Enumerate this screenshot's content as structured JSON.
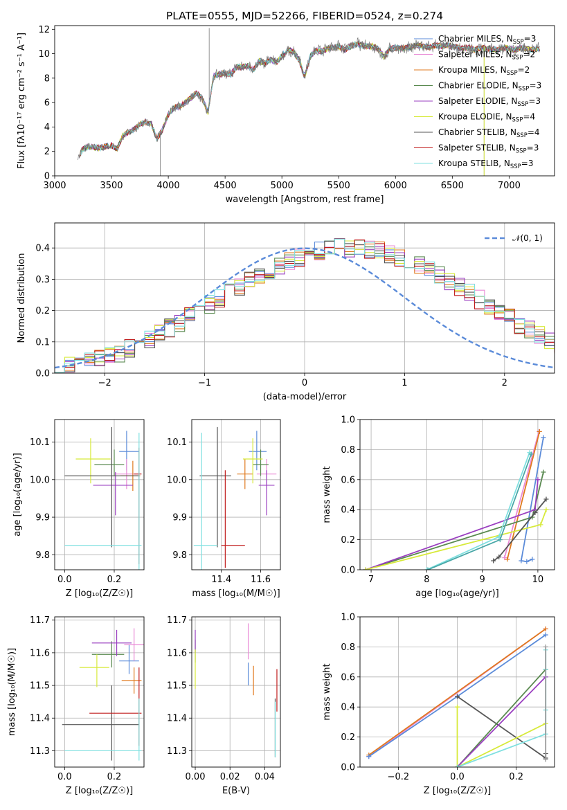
{
  "chart_data": [
    {
      "type": "line",
      "title": "PLATE=0555, MJD=52266, FIBERID=0524, z=0.274",
      "xlabel": "wavelength [Angstrom, rest frame]",
      "ylabel": "Flux [fλ10⁻¹⁷ erg cm⁻² s⁻¹ A⁻¹]",
      "xlim": [
        3000,
        7400
      ],
      "ylim": [
        0,
        12.3
      ],
      "xticks": [
        3000,
        3500,
        4000,
        4500,
        5000,
        5500,
        6000,
        6500,
        7000
      ],
      "yticks": [
        0,
        2,
        4,
        6,
        8,
        10,
        12
      ],
      "grid": false,
      "legend_position": "top-right",
      "x": [
        3200,
        3250,
        3300,
        3350,
        3400,
        3450,
        3500,
        3550,
        3600,
        3650,
        3700,
        3750,
        3800,
        3850,
        3900,
        3950,
        4000,
        4050,
        4100,
        4150,
        4200,
        4250,
        4300,
        4350,
        4400,
        4450,
        4500,
        4550,
        4600,
        4650,
        4700,
        4750,
        4800,
        4850,
        4900,
        4950,
        5000,
        5050,
        5100,
        5150,
        5200,
        5250,
        5300,
        5350,
        5400,
        5450,
        5500,
        5550,
        5600,
        5650,
        5700,
        5750,
        5800,
        5850,
        5900,
        5950,
        6000,
        6050,
        6100,
        6150,
        6200,
        6250,
        6300,
        6350,
        6400,
        6450,
        6500,
        6550,
        6600,
        6650,
        6700,
        6750,
        6800,
        6850,
        6900,
        6950,
        7000,
        7050,
        7100,
        7150,
        7200,
        7250
      ],
      "flux": [
        1.5,
        2.2,
        2.4,
        2.3,
        2.3,
        2.4,
        2.5,
        2.2,
        3.3,
        3.6,
        3.8,
        4.2,
        4.4,
        4.3,
        3.0,
        3.8,
        5.0,
        5.6,
        5.7,
        6.0,
        6.4,
        6.8,
        6.3,
        5.2,
        8.2,
        8.3,
        8.4,
        8.3,
        8.9,
        8.9,
        9.0,
        8.7,
        9.4,
        9.2,
        9.5,
        9.3,
        9.8,
        10.3,
        10.2,
        9.5,
        8.1,
        9.8,
        10.3,
        10.2,
        10.4,
        10.5,
        10.6,
        10.3,
        10.6,
        10.8,
        10.7,
        10.6,
        10.6,
        10.4,
        9.7,
        10.4,
        10.5,
        10.4,
        10.5,
        10.6,
        10.7,
        10.6,
        10.5,
        10.7,
        10.6,
        10.7,
        10.6,
        10.5,
        10.4,
        10.5,
        10.3,
        10.5,
        10.4,
        10.4,
        10.3,
        10.5,
        10.4,
        10.3,
        10.5,
        10.4,
        10.3,
        10.4
      ],
      "spikes": [
        {
          "x": 4360,
          "y": 12.1
        },
        {
          "x": 3930,
          "y": 0
        },
        {
          "x": 6780,
          "y": 0
        }
      ],
      "series": [
        {
          "name": "Chabrier MILES, N_SSP=3",
          "color": "#5b8bd9"
        },
        {
          "name": "Salpeter MILES, N_SSP=2",
          "color": "#e98ad6"
        },
        {
          "name": "Kroupa MILES, N_SSP=2",
          "color": "#e07a1f"
        },
        {
          "name": "Chabrier ELODIE, N_SSP=3",
          "color": "#5a8a50"
        },
        {
          "name": "Salpeter ELODIE, N_SSP=3",
          "color": "#9a3fc0"
        },
        {
          "name": "Kroupa ELODIE, N_SSP=4",
          "color": "#d7ea3a"
        },
        {
          "name": "Chabrier STELIB, N_SSP=4",
          "color": "#555555"
        },
        {
          "name": "Salpeter STELIB, N_SSP=3",
          "color": "#c01c1c"
        },
        {
          "name": "Kroupa STELIB, N_SSP=3",
          "color": "#7fe0e0"
        }
      ]
    },
    {
      "type": "histogram",
      "xlabel": "(data-model)/error",
      "ylabel": "Normed distribution",
      "xlim": [
        -2.5,
        2.5
      ],
      "ylim": [
        0,
        0.48
      ],
      "xticks": [
        -2,
        -1,
        0,
        1,
        2
      ],
      "yticks": [
        0.0,
        0.1,
        0.2,
        0.3,
        0.4
      ],
      "grid": true,
      "legend_position": "top-right",
      "gaussian_label": "𝒩(0, 1)",
      "gaussian_color": "#5b8bd9",
      "bin_width": 0.1,
      "bins_from": -2.5,
      "base_profile": [
        0.02,
        0.025,
        0.03,
        0.035,
        0.045,
        0.055,
        0.065,
        0.08,
        0.095,
        0.11,
        0.125,
        0.145,
        0.16,
        0.18,
        0.2,
        0.22,
        0.24,
        0.26,
        0.275,
        0.295,
        0.31,
        0.325,
        0.34,
        0.355,
        0.37,
        0.38,
        0.39,
        0.395,
        0.4,
        0.4,
        0.4,
        0.395,
        0.39,
        0.38,
        0.37,
        0.36,
        0.345,
        0.33,
        0.31,
        0.29,
        0.275,
        0.255,
        0.235,
        0.215,
        0.195,
        0.175,
        0.155,
        0.14,
        0.12,
        0.105,
        0.09,
        0.075,
        0.062,
        0.05,
        0.04,
        0.032,
        0.025,
        0.02
      ],
      "series_colors": [
        "#5b8bd9",
        "#e98ad6",
        "#e07a1f",
        "#5a8a50",
        "#9a3fc0",
        "#d7ea3a",
        "#555555",
        "#c01c1c",
        "#7fe0e0"
      ]
    },
    {
      "type": "scatter",
      "xlabel": "Z [log₁₀(Z/Z☉)]",
      "ylabel": "age  [log₁₀(age/yr)]",
      "xlim": [
        -0.04,
        0.32
      ],
      "ylim": [
        9.76,
        10.16
      ],
      "xticks": [
        0.0,
        0.2
      ],
      "yticks": [
        9.8,
        9.9,
        10.0,
        10.1
      ],
      "grid": true,
      "points": [
        {
          "x": 0.25,
          "y": 10.075,
          "xerr": [
            0.03,
            0.05
          ],
          "yerr": [
            0.05,
            0.055
          ],
          "color": "#5b8bd9"
        },
        {
          "x": 0.25,
          "y": 10.015,
          "xerr": [
            0.05,
            0.05
          ],
          "yerr": [
            0.04,
            0.04
          ],
          "color": "#e98ad6"
        },
        {
          "x": 0.275,
          "y": 10.01,
          "xerr": [
            0.05,
            0.03
          ],
          "yerr": [
            0.04,
            0.04
          ],
          "color": "#e07a1f"
        },
        {
          "x": 0.2,
          "y": 10.04,
          "xerr": [
            0.08,
            0.04
          ],
          "yerr": [
            0.03,
            0.04
          ],
          "color": "#5a8a50"
        },
        {
          "x": 0.205,
          "y": 9.985,
          "xerr": [
            0.09,
            0.07
          ],
          "yerr": [
            0.08,
            0.035
          ],
          "color": "#9a3fc0"
        },
        {
          "x": 0.105,
          "y": 10.055,
          "xerr": [
            0.06,
            0.08
          ],
          "yerr": [
            0.065,
            0.055
          ],
          "color": "#d7ea3a"
        },
        {
          "x": 0.19,
          "y": 10.01,
          "xerr": [
            0.19,
            0.11
          ],
          "yerr": [
            0.19,
            0.13
          ],
          "color": "#555555"
        },
        {
          "x": 0.3,
          "y": 10.015,
          "xerr": [
            0.02,
            0.01
          ],
          "yerr": [
            0.24,
            0.07
          ],
          "color": "#c01c1c"
        },
        {
          "x": 0.3,
          "y": 9.825,
          "xerr": [
            0.3,
            0.01
          ],
          "yerr": [
            0.07,
            0.3
          ],
          "color": "#7fe0e0"
        }
      ]
    },
    {
      "type": "scatter",
      "xlabel": "mass [log₁₀(M/M☉)]",
      "ylabel": "",
      "xlim": [
        11.25,
        11.7
      ],
      "ylim": [
        9.76,
        10.16
      ],
      "xticks": [
        11.4,
        11.6
      ],
      "yticks": [
        9.8,
        9.9,
        10.0,
        10.1
      ],
      "grid": true,
      "points": [
        {
          "x": 11.58,
          "y": 10.075,
          "xerr": [
            0.04,
            0.05
          ],
          "yerr": [
            0.05,
            0.055
          ],
          "color": "#5b8bd9"
        },
        {
          "x": 11.63,
          "y": 10.015,
          "xerr": [
            0.05,
            0.05
          ],
          "yerr": [
            0.04,
            0.04
          ],
          "color": "#e98ad6"
        },
        {
          "x": 11.52,
          "y": 10.015,
          "xerr": [
            0.04,
            0.04
          ],
          "yerr": [
            0.04,
            0.04
          ],
          "color": "#e07a1f"
        },
        {
          "x": 11.6,
          "y": 10.04,
          "xerr": [
            0.04,
            0.04
          ],
          "yerr": [
            0.03,
            0.04
          ],
          "color": "#5a8a50"
        },
        {
          "x": 11.63,
          "y": 9.985,
          "xerr": [
            0.04,
            0.04
          ],
          "yerr": [
            0.08,
            0.04
          ],
          "color": "#9a3fc0"
        },
        {
          "x": 11.56,
          "y": 10.055,
          "xerr": [
            0.05,
            0.05
          ],
          "yerr": [
            0.065,
            0.055
          ],
          "color": "#d7ea3a"
        },
        {
          "x": 11.38,
          "y": 10.01,
          "xerr": [
            0.09,
            0.07
          ],
          "yerr": [
            0.19,
            0.13
          ],
          "color": "#555555"
        },
        {
          "x": 11.42,
          "y": 9.825,
          "xerr": [
            0.02,
            0.1
          ],
          "yerr": [
            0.06,
            0.2
          ],
          "color": "#c01c1c"
        },
        {
          "x": 11.3,
          "y": 9.825,
          "xerr": [
            0.04,
            0.08
          ],
          "yerr": [
            0.07,
            0.3
          ],
          "color": "#7fe0e0"
        }
      ]
    },
    {
      "type": "line",
      "xlabel": "age  [log₁₀(age/yr)]",
      "ylabel": "mass weight",
      "xlim": [
        6.8,
        10.3
      ],
      "ylim": [
        0,
        1
      ],
      "xticks": [
        7,
        8,
        9,
        10
      ],
      "yticks": [
        0.0,
        0.2,
        0.4,
        0.6,
        0.8,
        1.0
      ],
      "grid": true,
      "series": [
        {
          "color": "#e98ad6",
          "x": [
            9.4,
            10.02
          ],
          "y": [
            0.08,
            0.92
          ]
        },
        {
          "color": "#e07a1f",
          "x": [
            9.45,
            10.03
          ],
          "y": [
            0.07,
            0.92
          ]
        },
        {
          "color": "#5b8bd9",
          "x": [
            9.9,
            9.8,
            9.7,
            10.1
          ],
          "y": [
            0.07,
            0.055,
            0.06,
            0.88
          ]
        },
        {
          "color": "#5a8a50",
          "x": [
            6.9,
            9.9,
            10.1
          ],
          "y": [
            0.0,
            0.35,
            0.65
          ]
        },
        {
          "color": "#9a3fc0",
          "x": [
            6.9,
            9.95,
            10.0
          ],
          "y": [
            0.0,
            0.4,
            0.6
          ]
        },
        {
          "color": "#d7ea3a",
          "x": [
            6.9,
            10.05,
            10.15
          ],
          "y": [
            0.0,
            0.3,
            0.4
          ]
        },
        {
          "color": "#555555",
          "x": [
            9.2,
            9.3,
            9.95,
            10.15
          ],
          "y": [
            0.06,
            0.085,
            0.38,
            0.47
          ]
        },
        {
          "color": "#7fe0e0",
          "x": [
            8.0,
            9.3,
            9.85
          ],
          "y": [
            0.0,
            0.22,
            0.78
          ]
        },
        {
          "color": "#4aa8a8",
          "x": [
            8.02,
            9.32,
            9.88
          ],
          "y": [
            0.0,
            0.2,
            0.77
          ]
        }
      ]
    },
    {
      "type": "scatter",
      "xlabel": "Z [log₁₀(Z/Z☉)]",
      "ylabel": "mass [log₁₀(M/M☉)]",
      "xlim": [
        -0.04,
        0.32
      ],
      "ylim": [
        11.25,
        11.71
      ],
      "xticks": [
        0.0,
        0.2
      ],
      "yticks": [
        11.3,
        11.4,
        11.5,
        11.6,
        11.7
      ],
      "grid": true,
      "points": [
        {
          "x": 0.26,
          "y": 11.575,
          "xerr": [
            0.04,
            0.04
          ],
          "yerr": [
            0.04,
            0.05
          ],
          "color": "#5b8bd9"
        },
        {
          "x": 0.28,
          "y": 11.625,
          "xerr": [
            0.04,
            0.04
          ],
          "yerr": [
            0.05,
            0.05
          ],
          "color": "#e98ad6"
        },
        {
          "x": 0.28,
          "y": 11.515,
          "xerr": [
            0.05,
            0.03
          ],
          "yerr": [
            0.04,
            0.04
          ],
          "color": "#e07a1f"
        },
        {
          "x": 0.19,
          "y": 11.595,
          "xerr": [
            0.08,
            0.05
          ],
          "yerr": [
            0.04,
            0.04
          ],
          "color": "#5a8a50"
        },
        {
          "x": 0.21,
          "y": 11.63,
          "xerr": [
            0.1,
            0.06
          ],
          "yerr": [
            0.04,
            0.04
          ],
          "color": "#9a3fc0"
        },
        {
          "x": 0.13,
          "y": 11.555,
          "xerr": [
            0.07,
            0.05
          ],
          "yerr": [
            0.06,
            0.04
          ],
          "color": "#d7ea3a"
        },
        {
          "x": 0.19,
          "y": 11.38,
          "xerr": [
            0.2,
            0.11
          ],
          "yerr": [
            0.11,
            0.12
          ],
          "color": "#555555"
        },
        {
          "x": 0.3,
          "y": 11.415,
          "xerr": [
            0.2,
            0.01
          ],
          "yerr": [
            0.1,
            0.14
          ],
          "color": "#c01c1c"
        },
        {
          "x": 0.3,
          "y": 11.3,
          "xerr": [
            0.3,
            0.01
          ],
          "yerr": [
            0.03,
            0.16
          ],
          "color": "#7fe0e0"
        }
      ]
    },
    {
      "type": "scatter",
      "xlabel": "E(B-V)",
      "ylabel": "",
      "xlim": [
        -0.002,
        0.049
      ],
      "ylim": [
        11.25,
        11.71
      ],
      "xticks": [
        0.0,
        0.02,
        0.04
      ],
      "yticks": [
        11.3,
        11.4,
        11.5,
        11.6,
        11.7
      ],
      "grid": true,
      "points": [
        {
          "x": 0.0305,
          "y": 11.53,
          "yerr": [
            0.03,
            0.04
          ],
          "color": "#5b8bd9"
        },
        {
          "x": 0.0305,
          "y": 11.63,
          "yerr": [
            0.05,
            0.06
          ],
          "color": "#e98ad6"
        },
        {
          "x": 0.0335,
          "y": 11.52,
          "yerr": [
            0.05,
            0.04
          ],
          "color": "#e07a1f"
        },
        {
          "x": 0.0,
          "y": 11.6,
          "yerr": [
            0.03,
            0.04
          ],
          "color": "#5a8a50"
        },
        {
          "x": 0.0,
          "y": 11.63,
          "yerr": [
            0.03,
            0.04
          ],
          "color": "#9a3fc0"
        },
        {
          "x": 0.0,
          "y": 11.55,
          "yerr": [
            0.06,
            0.06
          ],
          "color": "#d7ea3a"
        },
        {
          "x": 0.046,
          "y": 11.38,
          "yerr": [
            0.1,
            0.08
          ],
          "color": "#555555"
        },
        {
          "x": 0.047,
          "y": 11.47,
          "yerr": [
            0.05,
            0.08
          ],
          "color": "#c01c1c"
        },
        {
          "x": 0.046,
          "y": 11.35,
          "yerr": [
            0.07,
            0.1
          ],
          "color": "#7fe0e0"
        }
      ]
    },
    {
      "type": "line",
      "xlabel": "Z [log₁₀(Z/Z☉)]",
      "ylabel": "mass weight",
      "xlim": [
        -0.33,
        0.33
      ],
      "ylim": [
        0,
        1
      ],
      "xticks": [
        -0.2,
        0.0,
        0.2
      ],
      "yticks": [
        0.0,
        0.2,
        0.4,
        0.6,
        0.8,
        1.0
      ],
      "grid": true,
      "series": [
        {
          "color": "#e98ad6",
          "x": [
            -0.3,
            0.3
          ],
          "y": [
            0.07,
            0.92
          ]
        },
        {
          "color": "#e07a1f",
          "x": [
            -0.3,
            0.3
          ],
          "y": [
            0.08,
            0.92
          ]
        },
        {
          "color": "#5b8bd9",
          "x": [
            -0.3,
            0.0,
            0.3
          ],
          "y": [
            0.07,
            0.47,
            0.88
          ]
        },
        {
          "color": "#555555",
          "x": [
            0.0,
            0.3,
            0.3
          ],
          "y": [
            0.47,
            0.06,
            0.09
          ]
        },
        {
          "color": "#5a8a50",
          "x": [
            0.0,
            0.3
          ],
          "y": [
            0.0,
            0.65
          ]
        },
        {
          "color": "#9a3fc0",
          "x": [
            0.0,
            0.3
          ],
          "y": [
            0.0,
            0.6
          ]
        },
        {
          "color": "#d7ea3a",
          "x": [
            0.0,
            0.0,
            0.3
          ],
          "y": [
            0.4,
            0.0,
            0.29
          ]
        },
        {
          "color": "#7fe0e0",
          "x": [
            0.0,
            0.3,
            0.3,
            0.3,
            0.3
          ],
          "y": [
            0.0,
            0.22,
            0.38,
            0.65,
            0.78
          ]
        },
        {
          "color": "#999999",
          "x": [
            0.3,
            0.3
          ],
          "y": [
            0.05,
            0.8
          ]
        }
      ]
    }
  ]
}
